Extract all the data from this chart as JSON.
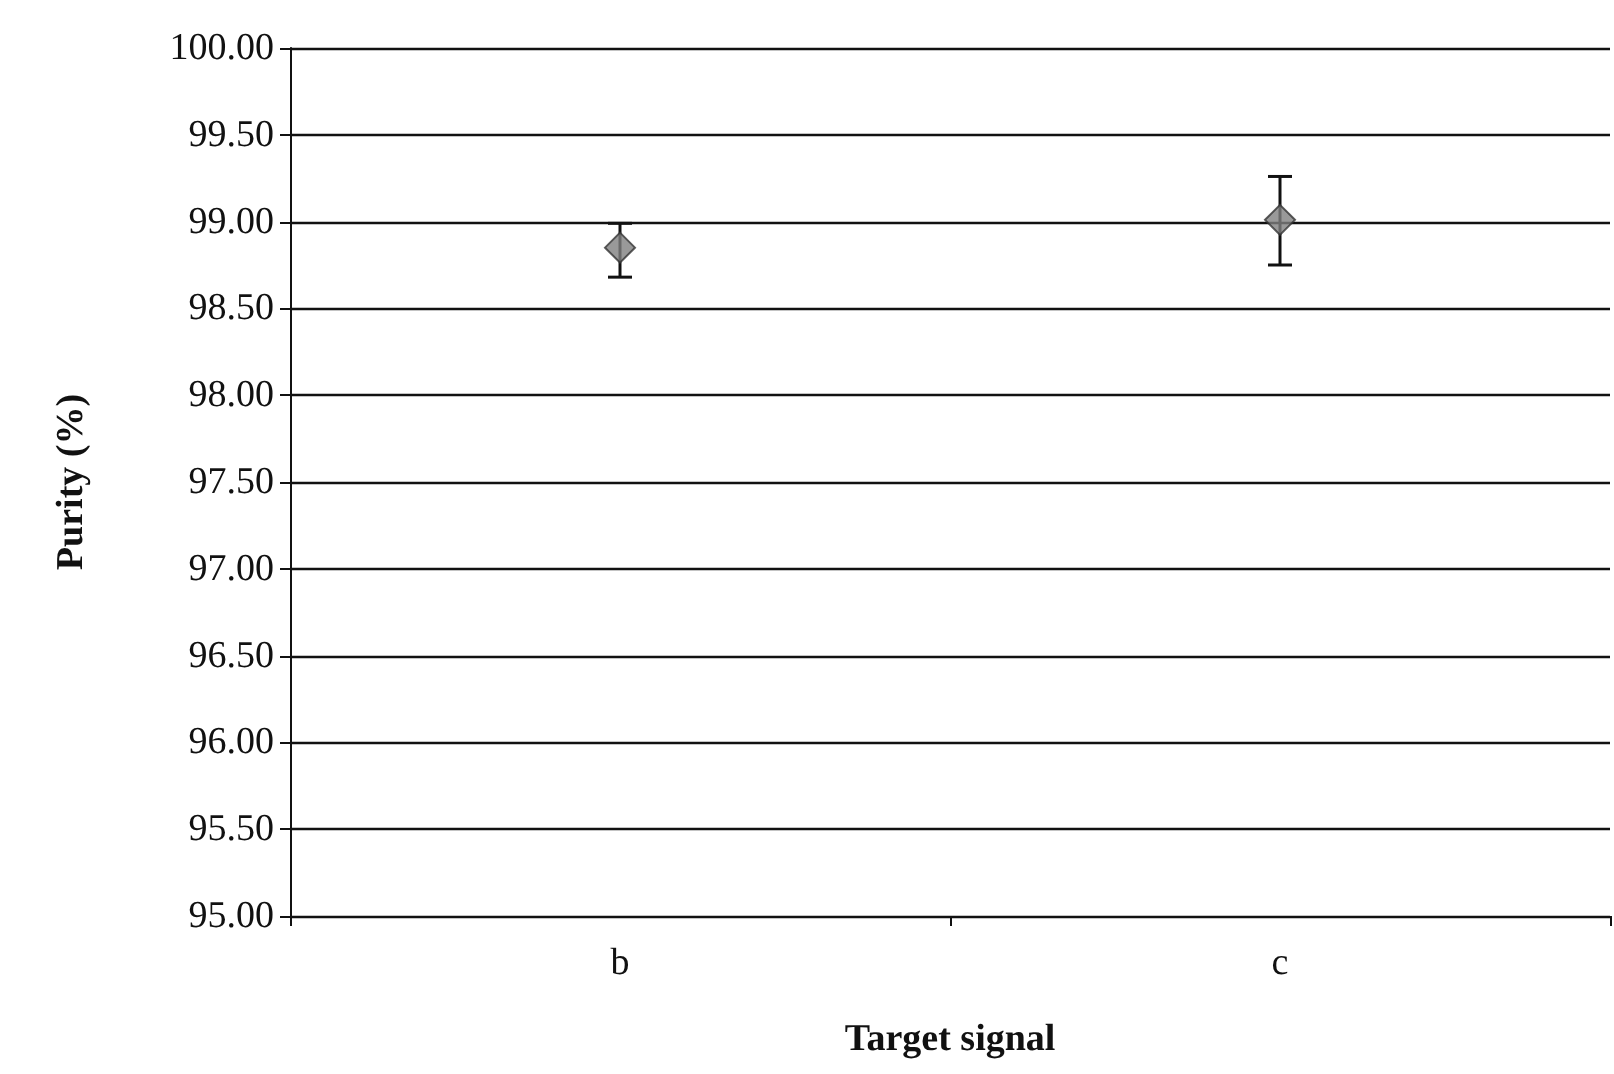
{
  "chart_data": {
    "type": "scatter",
    "xlabel": "Target signal",
    "ylabel": "Purity (%)",
    "categories": [
      "b",
      "c"
    ],
    "series": [
      {
        "color": "#808080",
        "values": [
          98.85,
          99.01
        ],
        "errors": [
          [
            98.68,
            98.99
          ],
          [
            98.75,
            99.26
          ]
        ]
      }
    ],
    "ylim": [
      95,
      100
    ],
    "yticks": [
      {
        "value": 95,
        "label": "95.00"
      },
      {
        "value": 95.5,
        "label": "95.50"
      },
      {
        "value": 96,
        "label": "96.00"
      },
      {
        "value": 96.5,
        "label": "96.50"
      },
      {
        "value": 97,
        "label": "97.00"
      },
      {
        "value": 97.5,
        "label": "97.50"
      },
      {
        "value": 98,
        "label": "98.00"
      },
      {
        "value": 98.5,
        "label": "98.50"
      },
      {
        "value": 99,
        "label": "99.00"
      },
      {
        "value": 99.5,
        "label": "99.50"
      },
      {
        "value": 100,
        "label": "100.00"
      }
    ],
    "grid": "y",
    "marker": "diamond"
  }
}
